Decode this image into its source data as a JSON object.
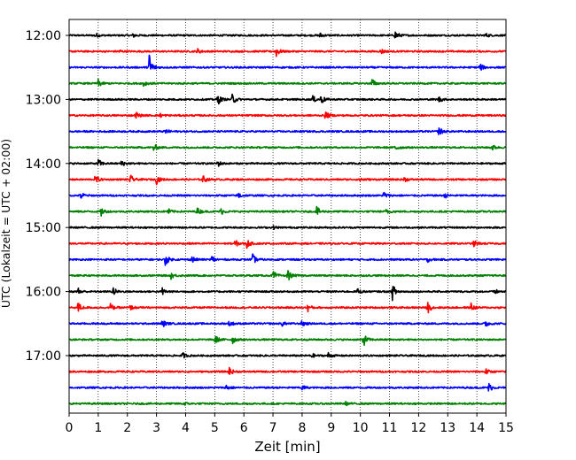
{
  "chart_data": {
    "type": "line",
    "xlabel": "Zeit  [min]",
    "ylabel": "UTC (Lokalzeit = UTC + 02:00)",
    "xlim": [
      0,
      15
    ],
    "x_ticks": [
      0,
      1,
      2,
      3,
      4,
      5,
      6,
      7,
      8,
      9,
      10,
      11,
      12,
      13,
      14,
      15
    ],
    "x_grid": "dotted",
    "y_tick_labels": [
      "12:00",
      "13:00",
      "14:00",
      "15:00",
      "16:00",
      "17:00"
    ],
    "colors": [
      "#000000",
      "#ff0000",
      "#0000ff",
      "#008000"
    ],
    "traces": [
      {
        "start": "12:00",
        "color": "#000000",
        "events": [
          [
            0.9,
            0.3
          ],
          [
            2.2,
            0.25
          ],
          [
            8.6,
            0.35
          ],
          [
            11.2,
            0.6
          ],
          [
            14.3,
            0.25
          ]
        ]
      },
      {
        "start": "12:15",
        "color": "#ff0000",
        "events": [
          [
            1.7,
            0.25
          ],
          [
            4.4,
            0.35
          ],
          [
            7.1,
            0.8
          ],
          [
            10.7,
            0.35
          ]
        ]
      },
      {
        "start": "12:30",
        "color": "#0000ff",
        "events": [
          [
            2.75,
            1.9
          ],
          [
            14.1,
            0.5
          ]
        ]
      },
      {
        "start": "12:45",
        "color": "#008000",
        "events": [
          [
            1.0,
            0.5
          ],
          [
            2.55,
            0.4
          ],
          [
            10.4,
            0.55
          ]
        ]
      },
      {
        "start": "13:00",
        "color": "#000000",
        "events": [
          [
            5.1,
            0.7
          ],
          [
            5.6,
            0.7
          ],
          [
            8.35,
            0.5
          ],
          [
            8.65,
            0.6
          ],
          [
            12.7,
            0.35
          ]
        ]
      },
      {
        "start": "13:15",
        "color": "#ff0000",
        "events": [
          [
            2.3,
            0.4
          ],
          [
            3.1,
            0.3
          ],
          [
            8.8,
            0.5
          ]
        ]
      },
      {
        "start": "13:30",
        "color": "#0000ff",
        "events": [
          [
            3.3,
            0.35
          ],
          [
            12.7,
            0.6
          ]
        ]
      },
      {
        "start": "13:45",
        "color": "#008000",
        "events": [
          [
            2.9,
            0.45
          ],
          [
            11.2,
            0.55
          ],
          [
            14.5,
            0.45
          ]
        ]
      },
      {
        "start": "14:00",
        "color": "#000000",
        "events": [
          [
            1.0,
            0.55
          ],
          [
            1.8,
            0.4
          ],
          [
            5.1,
            0.4
          ]
        ]
      },
      {
        "start": "14:15",
        "color": "#ff0000",
        "events": [
          [
            0.9,
            0.55
          ],
          [
            2.1,
            0.55
          ],
          [
            3.0,
            0.55
          ],
          [
            4.6,
            0.45
          ],
          [
            10.0,
            0.35
          ],
          [
            11.5,
            0.3
          ]
        ]
      },
      {
        "start": "14:30",
        "color": "#0000ff",
        "events": [
          [
            0.4,
            0.45
          ],
          [
            5.8,
            0.5
          ],
          [
            10.8,
            0.5
          ],
          [
            12.9,
            0.3
          ]
        ]
      },
      {
        "start": "14:45",
        "color": "#008000",
        "events": [
          [
            1.1,
            0.55
          ],
          [
            3.4,
            0.35
          ],
          [
            4.4,
            0.45
          ],
          [
            5.2,
            0.45
          ],
          [
            8.5,
            0.6
          ],
          [
            10.9,
            0.35
          ]
        ]
      },
      {
        "start": "15:00",
        "color": "#000000",
        "events": [
          [
            7.0,
            0.2
          ]
        ]
      },
      {
        "start": "15:15",
        "color": "#ff0000",
        "events": [
          [
            5.7,
            0.45
          ],
          [
            6.1,
            0.55
          ],
          [
            13.9,
            0.4
          ]
        ]
      },
      {
        "start": "15:30",
        "color": "#0000ff",
        "events": [
          [
            3.3,
            0.75
          ],
          [
            4.2,
            0.5
          ],
          [
            4.9,
            0.45
          ],
          [
            6.3,
            0.65
          ],
          [
            12.3,
            0.3
          ]
        ]
      },
      {
        "start": "15:45",
        "color": "#008000",
        "events": [
          [
            3.5,
            0.4
          ],
          [
            7.0,
            0.6
          ],
          [
            7.5,
            0.75
          ]
        ]
      },
      {
        "start": "16:00",
        "color": "#000000",
        "events": [
          [
            0.3,
            0.5
          ],
          [
            1.5,
            0.6
          ],
          [
            3.2,
            0.45
          ],
          [
            9.9,
            0.35
          ],
          [
            11.1,
            1.05
          ],
          [
            14.6,
            0.35
          ]
        ]
      },
      {
        "start": "16:15",
        "color": "#ff0000",
        "events": [
          [
            0.3,
            0.7
          ],
          [
            1.4,
            0.55
          ],
          [
            2.1,
            0.3
          ],
          [
            8.2,
            0.45
          ],
          [
            12.3,
            0.8
          ],
          [
            13.8,
            0.55
          ]
        ]
      },
      {
        "start": "16:30",
        "color": "#0000ff",
        "events": [
          [
            3.2,
            0.5
          ],
          [
            5.5,
            0.4
          ],
          [
            7.3,
            0.3
          ],
          [
            8.0,
            0.45
          ],
          [
            14.3,
            0.45
          ]
        ]
      },
      {
        "start": "16:45",
        "color": "#008000",
        "events": [
          [
            5.0,
            0.65
          ],
          [
            5.6,
            0.55
          ],
          [
            10.1,
            0.9
          ]
        ]
      },
      {
        "start": "17:00",
        "color": "#000000",
        "events": [
          [
            3.9,
            0.35
          ],
          [
            8.3,
            0.35
          ],
          [
            8.9,
            0.35
          ]
        ]
      },
      {
        "start": "17:15",
        "color": "#ff0000",
        "events": [
          [
            5.5,
            0.5
          ],
          [
            14.3,
            0.35
          ]
        ]
      },
      {
        "start": "17:30",
        "color": "#0000ff",
        "events": [
          [
            5.4,
            0.4
          ],
          [
            8.0,
            0.3
          ],
          [
            14.4,
            0.6
          ]
        ]
      },
      {
        "start": "17:45",
        "color": "#008000",
        "events": [
          [
            3.9,
            0.3
          ],
          [
            9.5,
            0.2
          ]
        ]
      }
    ]
  }
}
